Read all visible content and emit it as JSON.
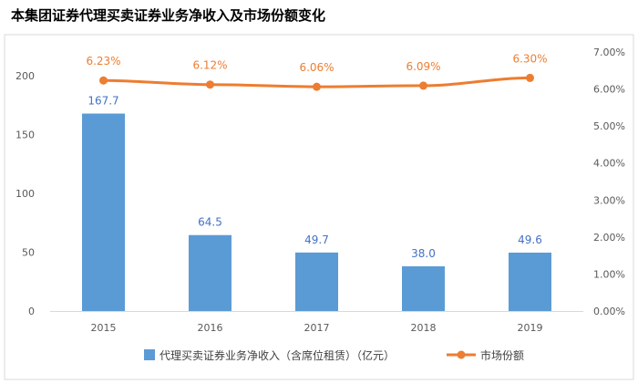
{
  "title": "本集团证券代理买卖证券业务净收入及市场份额变化",
  "chart_data": {
    "type": "bar",
    "categories": [
      "2015",
      "2016",
      "2017",
      "2018",
      "2019"
    ],
    "series": [
      {
        "name": "代理买卖证券业务净收入（含席位租赁）（亿元）",
        "type": "bar",
        "axis": "left",
        "values": [
          167.7,
          64.5,
          49.7,
          38.0,
          49.6
        ],
        "labels": [
          "167.7",
          "64.5",
          "49.7",
          "38.0",
          "49.6"
        ],
        "color": "#5B9BD5"
      },
      {
        "name": "市场份额",
        "type": "line",
        "axis": "right",
        "values": [
          6.23,
          6.12,
          6.06,
          6.09,
          6.3
        ],
        "labels": [
          "6.23%",
          "6.12%",
          "6.06%",
          "6.09%",
          "6.30%"
        ],
        "color": "#ED7D31"
      }
    ],
    "y_left": {
      "ylim": [
        0,
        220
      ],
      "ticks": [
        0,
        50,
        100,
        150,
        200
      ],
      "tick_labels": [
        "0",
        "50",
        "100",
        "150",
        "200"
      ]
    },
    "y_right": {
      "ylim": [
        0,
        7
      ],
      "ticks": [
        0,
        1,
        2,
        3,
        4,
        5,
        6,
        7
      ],
      "tick_labels": [
        "0.00%",
        "1.00%",
        "2.00%",
        "3.00%",
        "4.00%",
        "5.00%",
        "6.00%",
        "7.00%"
      ]
    },
    "xlabel": "",
    "ylabel": "",
    "grid": false,
    "legend_position": "bottom"
  }
}
